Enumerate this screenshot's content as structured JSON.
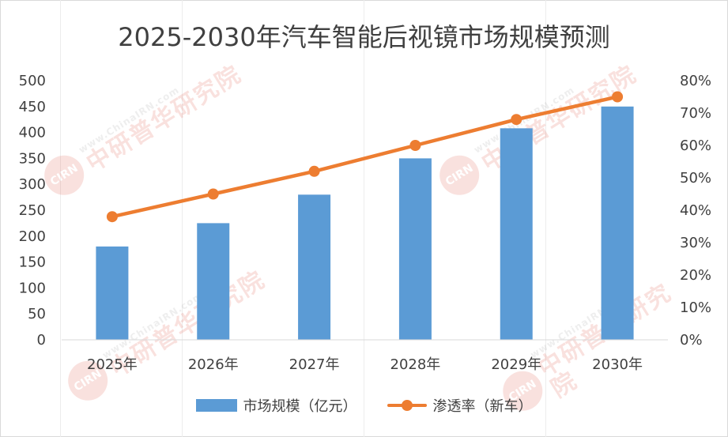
{
  "chart_data": {
    "type": "bar",
    "title": "2025-2030年汽车智能后视镜市场规模预测",
    "categories": [
      "2025年",
      "2026年",
      "2027年",
      "2028年",
      "2029年",
      "2030年"
    ],
    "series": [
      {
        "name": "市场规模（亿元）",
        "type": "bar",
        "axis": "left",
        "color": "#5b9bd5",
        "values": [
          180,
          225,
          280,
          350,
          408,
          450
        ]
      },
      {
        "name": "渗透率（新车）",
        "type": "line",
        "axis": "right",
        "color": "#ed7d31",
        "values": [
          0.38,
          0.45,
          0.52,
          0.6,
          0.68,
          0.75
        ]
      }
    ],
    "y_left": {
      "min": 0,
      "max": 500,
      "step": 50,
      "ticks": [
        "0",
        "50",
        "100",
        "150",
        "200",
        "250",
        "300",
        "350",
        "400",
        "450",
        "500"
      ]
    },
    "y_right": {
      "min": 0,
      "max": 0.8,
      "step": 0.1,
      "ticks": [
        "0%",
        "10%",
        "20%",
        "30%",
        "40%",
        "50%",
        "60%",
        "70%",
        "80%"
      ]
    },
    "xlabel": "",
    "ylabel": "",
    "grid": false,
    "legend_position": "bottom"
  },
  "watermark": {
    "logo_text": "CIRN",
    "url_text": "www.ChinaIRN.com",
    "name_text": "中研普华研究院",
    "logo_color": "#e04a3a"
  }
}
